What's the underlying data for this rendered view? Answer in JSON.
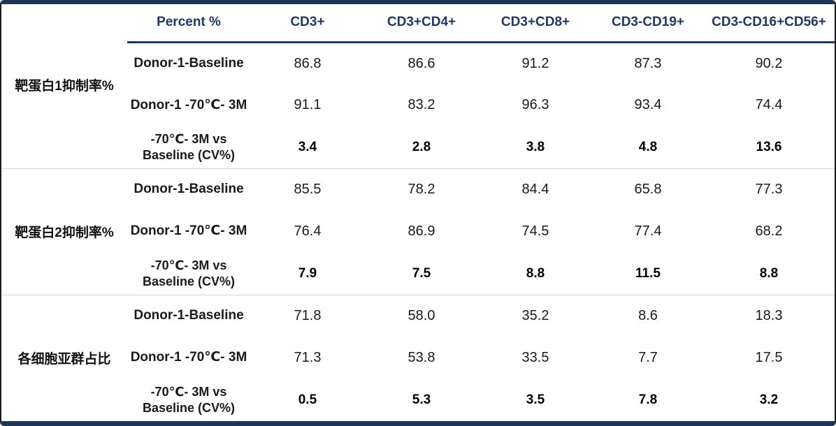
{
  "colors": {
    "header_text": "#1f3864",
    "band_navy": "#1f3555",
    "separator_gray": "#d4d4d4",
    "body_text": "#1a1a1a"
  },
  "table": {
    "header": {
      "corner": "",
      "columns": [
        "Percent %",
        "CD3+",
        "CD3+CD4+",
        "CD3+CD8+",
        "CD3-CD19+",
        "CD3-CD16+CD56+"
      ]
    },
    "groups": [
      {
        "label": "靶蛋白1抑制率%",
        "rows": [
          {
            "name": "Donor-1-Baseline",
            "values": [
              "86.8",
              "86.6",
              "91.2",
              "87.3",
              "90.2"
            ]
          },
          {
            "name": "Donor-1 -70℃- 3M",
            "values": [
              "91.1",
              "83.2",
              "96.3",
              "93.4",
              "74.4"
            ]
          },
          {
            "name": "-70℃- 3M vs\nBaseline (CV%)",
            "values": [
              "3.4",
              "2.8",
              "3.8",
              "4.8",
              "13.6"
            ]
          }
        ]
      },
      {
        "label": "靶蛋白2抑制率%",
        "rows": [
          {
            "name": "Donor-1-Baseline",
            "values": [
              "85.5",
              "78.2",
              "84.4",
              "65.8",
              "77.3"
            ]
          },
          {
            "name": "Donor-1 -70℃- 3M",
            "values": [
              "76.4",
              "86.9",
              "74.5",
              "77.4",
              "68.2"
            ]
          },
          {
            "name": "-70℃- 3M vs\nBaseline (CV%)",
            "values": [
              "7.9",
              "7.5",
              "8.8",
              "11.5",
              "8.8"
            ]
          }
        ]
      },
      {
        "label": "各细胞亚群占比",
        "rows": [
          {
            "name": "Donor-1-Baseline",
            "values": [
              "71.8",
              "58.0",
              "35.2",
              "8.6",
              "18.3"
            ]
          },
          {
            "name": "Donor-1 -70℃- 3M",
            "values": [
              "71.3",
              "53.8",
              "33.5",
              "7.7",
              "17.5"
            ]
          },
          {
            "name": "-70℃- 3M vs\nBaseline (CV%)",
            "values": [
              "0.5",
              "5.3",
              "3.5",
              "7.8",
              "3.2"
            ]
          }
        ]
      }
    ]
  }
}
